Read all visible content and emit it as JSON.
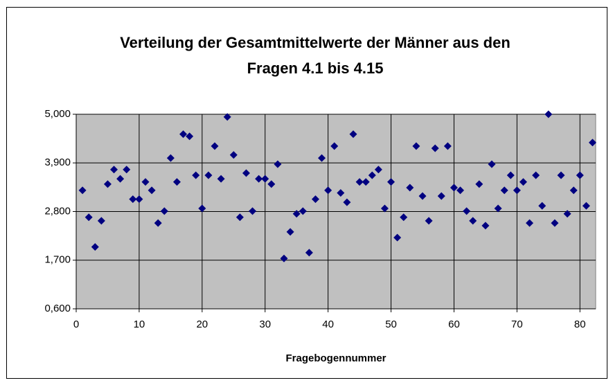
{
  "chart_data": {
    "type": "scatter",
    "title": [
      "Verteilung der Gesamtmittelwerte der Männer aus den",
      "Fragen 4.1 bis 4.15"
    ],
    "x_label": "Fragebogennummer",
    "x": [
      1,
      2,
      3,
      4,
      5,
      6,
      7,
      8,
      9,
      10,
      11,
      12,
      13,
      14,
      15,
      16,
      17,
      18,
      19,
      20,
      21,
      22,
      23,
      24,
      25,
      26,
      27,
      28,
      29,
      30,
      31,
      32,
      33,
      34,
      35,
      36,
      37,
      38,
      39,
      40,
      41,
      42,
      43,
      44,
      45,
      46,
      47,
      48,
      49,
      50,
      51,
      52,
      53,
      54,
      55,
      56,
      57,
      58,
      59,
      60,
      61,
      62,
      63,
      64,
      65,
      66,
      67,
      68,
      69,
      70,
      71,
      72,
      73,
      74,
      75,
      76,
      77,
      78,
      79,
      80,
      81,
      82
    ],
    "values": [
      3.28,
      2.67,
      2.0,
      2.59,
      3.42,
      3.75,
      3.54,
      3.75,
      3.08,
      3.08,
      3.47,
      3.28,
      2.54,
      2.81,
      4.01,
      3.47,
      4.55,
      4.5,
      3.62,
      2.87,
      3.62,
      4.28,
      3.54,
      4.94,
      4.08,
      2.67,
      3.67,
      2.81,
      3.54,
      3.54,
      3.42,
      3.87,
      1.74,
      2.34,
      2.75,
      2.81,
      1.87,
      3.08,
      4.01,
      3.28,
      4.28,
      3.22,
      3.01,
      4.55,
      3.47,
      3.47,
      3.62,
      3.75,
      2.87,
      3.47,
      2.21,
      2.67,
      3.34,
      4.28,
      3.15,
      2.59,
      4.23,
      3.15,
      4.28,
      3.34,
      3.28,
      2.81,
      2.59,
      3.42,
      2.48,
      3.87,
      2.87,
      3.28,
      3.62,
      3.28,
      3.47,
      2.54,
      3.62,
      2.93,
      5.0,
      2.54,
      3.62,
      2.75,
      3.28,
      3.62,
      2.93,
      4.36
    ],
    "color": "#000080",
    "xlim": [
      0,
      82.5
    ],
    "xticks": [
      0,
      10,
      20,
      30,
      40,
      50,
      60,
      70,
      80
    ],
    "ylim": [
      0.6,
      5.0
    ],
    "yticks": [
      {
        "value": 0.6,
        "label": "0,600"
      },
      {
        "value": 1.7,
        "label": "1,700"
      },
      {
        "value": 2.8,
        "label": "2,800"
      },
      {
        "value": 3.9,
        "label": "3,900"
      },
      {
        "value": 5.0,
        "label": "5,000"
      }
    ],
    "grid": true,
    "plot_background": "#c0c0c0"
  }
}
